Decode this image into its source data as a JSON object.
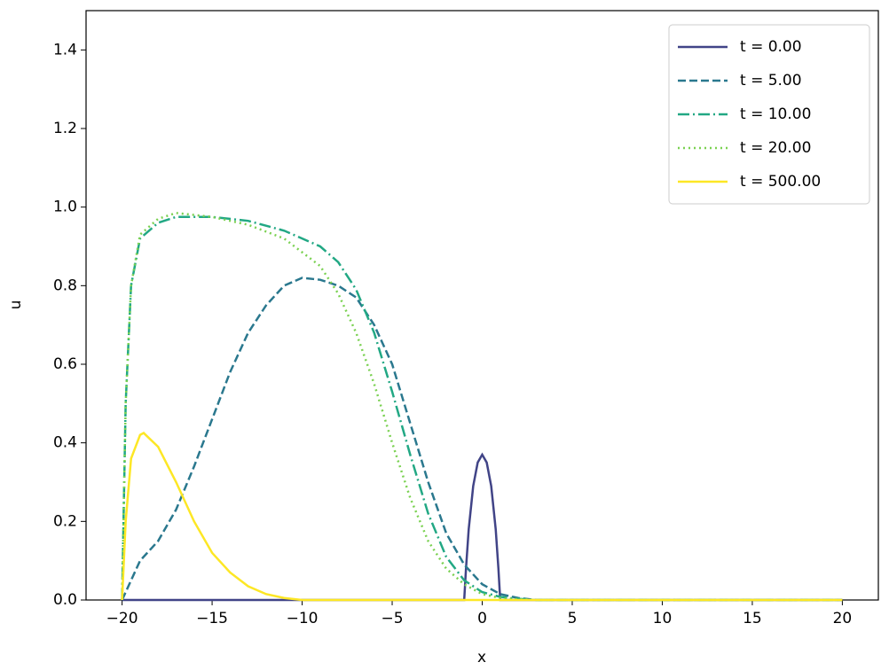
{
  "chart_data": {
    "type": "line",
    "x_label": "x",
    "y_label": "u",
    "xlim": [
      -22,
      22
    ],
    "ylim": [
      0,
      1.5
    ],
    "xticks": [
      {
        "value": -20,
        "label": "−20"
      },
      {
        "value": -15,
        "label": "−15"
      },
      {
        "value": -10,
        "label": "−10"
      },
      {
        "value": -5,
        "label": "−5"
      },
      0,
      5,
      10,
      15,
      20
    ],
    "yticks": [
      {
        "value": 0,
        "label": "0.0"
      },
      {
        "value": 0.2,
        "label": "0.2"
      },
      {
        "value": 0.4,
        "label": "0.4"
      },
      {
        "value": 0.6,
        "label": "0.6"
      },
      {
        "value": 0.8,
        "label": "0.8"
      },
      {
        "value": 1.0,
        "label": "1.0"
      },
      {
        "value": 1.2,
        "label": "1.2"
      },
      {
        "value": 1.4,
        "label": "1.4"
      }
    ],
    "legend": "upper right",
    "series": [
      {
        "name": "t = 0.00",
        "color": "#414487",
        "linestyle": "solid",
        "x": [
          -20,
          -1,
          -0.9,
          -0.75,
          -0.5,
          -0.25,
          0,
          0.25,
          0.5,
          0.75,
          0.9,
          1,
          20
        ],
        "values": [
          0,
          0,
          0.08,
          0.18,
          0.29,
          0.35,
          0.37,
          0.35,
          0.29,
          0.18,
          0.08,
          0,
          0
        ]
      },
      {
        "name": "t = 5.00",
        "color": "#2a788e",
        "linestyle": "dashed",
        "x": [
          -20,
          -19.5,
          -19,
          -18,
          -17,
          -16,
          -15,
          -14,
          -13,
          -12,
          -11,
          -10,
          -9,
          -8,
          -7,
          -6,
          -5,
          -4,
          -3,
          -2,
          -1,
          0,
          1,
          2,
          3,
          20
        ],
        "values": [
          0,
          0.05,
          0.1,
          0.15,
          0.23,
          0.34,
          0.46,
          0.58,
          0.68,
          0.75,
          0.8,
          0.82,
          0.815,
          0.8,
          0.77,
          0.7,
          0.6,
          0.45,
          0.3,
          0.17,
          0.09,
          0.04,
          0.015,
          0.005,
          0,
          0
        ]
      },
      {
        "name": "t = 10.00",
        "color": "#22a884",
        "linestyle": "dashdot",
        "x": [
          -20,
          -19.8,
          -19.5,
          -19,
          -18,
          -17,
          -15,
          -13,
          -11,
          -9,
          -8,
          -7,
          -6,
          -5,
          -4,
          -3,
          -2,
          -1,
          0,
          1,
          2,
          3,
          20
        ],
        "values": [
          0,
          0.5,
          0.8,
          0.92,
          0.96,
          0.975,
          0.975,
          0.965,
          0.94,
          0.9,
          0.86,
          0.79,
          0.68,
          0.53,
          0.37,
          0.22,
          0.11,
          0.05,
          0.02,
          0.008,
          0.003,
          0,
          0
        ]
      },
      {
        "name": "t = 20.00",
        "color": "#7ad151",
        "linestyle": "dotted",
        "x": [
          -20,
          -19.8,
          -19.5,
          -19,
          -18,
          -17,
          -15,
          -13,
          -11,
          -9,
          -8,
          -7,
          -6,
          -5,
          -4,
          -3,
          -2,
          -1,
          0,
          1,
          2,
          3,
          20
        ],
        "values": [
          0,
          0.5,
          0.8,
          0.93,
          0.97,
          0.985,
          0.975,
          0.955,
          0.92,
          0.85,
          0.78,
          0.68,
          0.55,
          0.4,
          0.26,
          0.15,
          0.08,
          0.04,
          0.015,
          0.005,
          0.002,
          0,
          0
        ]
      },
      {
        "name": "t = 500.00",
        "color": "#fde725",
        "linestyle": "solid",
        "x": [
          -20,
          -19.8,
          -19.5,
          -19,
          -18.8,
          -18,
          -17,
          -16,
          -15,
          -14,
          -13,
          -12,
          -11,
          -10,
          20
        ],
        "values": [
          0,
          0.2,
          0.36,
          0.42,
          0.425,
          0.39,
          0.3,
          0.2,
          0.12,
          0.07,
          0.035,
          0.015,
          0.005,
          0,
          0
        ]
      }
    ]
  }
}
